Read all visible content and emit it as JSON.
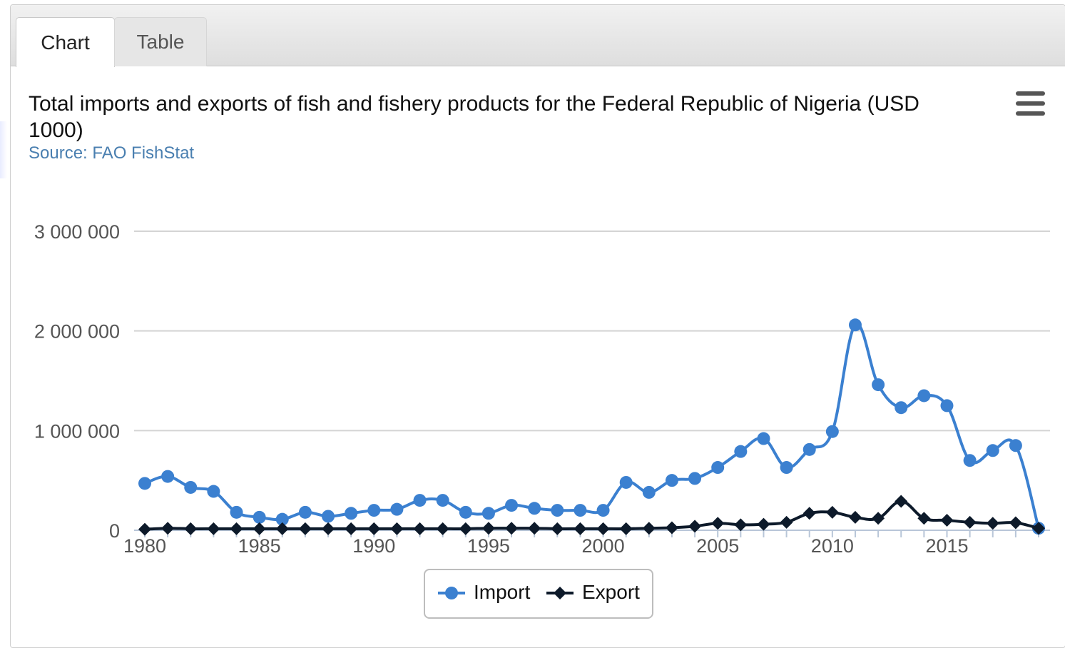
{
  "tabs": [
    {
      "label": "Chart",
      "active": true
    },
    {
      "label": "Table",
      "active": false
    }
  ],
  "menu_icon": "hamburger-menu-icon",
  "colors": {
    "import": "#3b80d0",
    "export": "#0d1a2a",
    "subtitle": "#4a7fb0",
    "grid": "#d4d4d4"
  },
  "chart_data": {
    "type": "line",
    "title": "Total imports and exports of fish and fishery products for the Federal Republic of Nigeria (USD 1000)",
    "subtitle": "Source: FAO FishStat",
    "xlabel": "",
    "ylabel": "",
    "ylim": [
      0,
      3000000
    ],
    "yticks": [
      {
        "value": 0,
        "label": "0"
      },
      {
        "value": 1000000,
        "label": "1 000 000"
      },
      {
        "value": 2000000,
        "label": "2 000 000"
      },
      {
        "value": 3000000,
        "label": "3 000 000"
      }
    ],
    "xlim": [
      1980,
      2019
    ],
    "xticks": [
      1980,
      1985,
      1990,
      1995,
      2000,
      2005,
      2010,
      2015
    ],
    "x": [
      1980,
      1981,
      1982,
      1983,
      1984,
      1985,
      1986,
      1987,
      1988,
      1989,
      1990,
      1991,
      1992,
      1993,
      1994,
      1995,
      1996,
      1997,
      1998,
      1999,
      2000,
      2001,
      2002,
      2003,
      2004,
      2005,
      2006,
      2007,
      2008,
      2009,
      2010,
      2011,
      2012,
      2013,
      2014,
      2015,
      2016,
      2017,
      2018,
      2019
    ],
    "series": [
      {
        "name": "Import",
        "marker": "circle",
        "values": [
          470000,
          540000,
          430000,
          390000,
          180000,
          130000,
          110000,
          180000,
          140000,
          170000,
          200000,
          210000,
          300000,
          300000,
          180000,
          170000,
          250000,
          220000,
          200000,
          200000,
          200000,
          480000,
          380000,
          500000,
          520000,
          630000,
          790000,
          920000,
          630000,
          810000,
          990000,
          2060000,
          1460000,
          1230000,
          1350000,
          1250000,
          700000,
          800000,
          850000,
          20000
        ]
      },
      {
        "name": "Export",
        "marker": "diamond",
        "values": [
          10000,
          20000,
          15000,
          15000,
          15000,
          15000,
          15000,
          15000,
          15000,
          15000,
          15000,
          15000,
          15000,
          15000,
          15000,
          20000,
          20000,
          20000,
          15000,
          15000,
          15000,
          15000,
          20000,
          25000,
          40000,
          70000,
          55000,
          60000,
          80000,
          170000,
          180000,
          130000,
          120000,
          290000,
          120000,
          100000,
          80000,
          70000,
          75000,
          20000
        ]
      }
    ],
    "legend": {
      "position": "bottom-center"
    },
    "grid": true
  }
}
